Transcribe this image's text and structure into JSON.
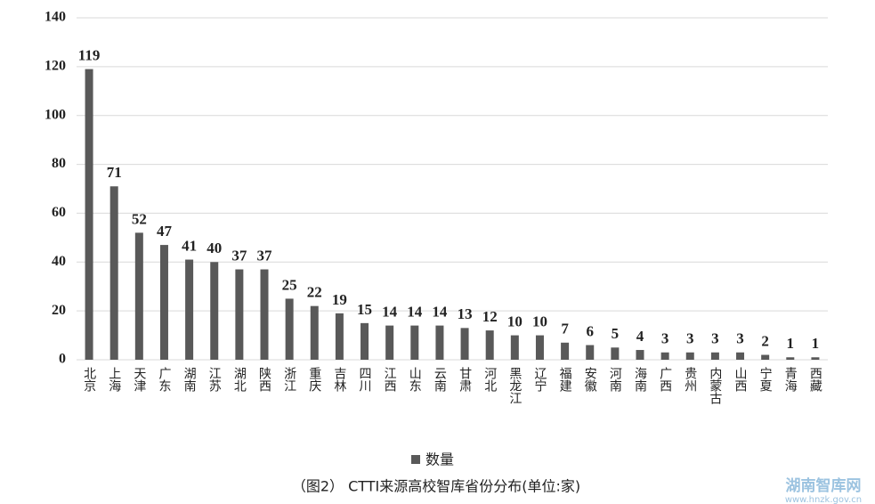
{
  "chart_data": {
    "type": "bar",
    "categories": [
      "北京",
      "上海",
      "天津",
      "广东",
      "湖南",
      "江苏",
      "湖北",
      "陕西",
      "浙江",
      "重庆",
      "吉林",
      "四川",
      "江西",
      "山东",
      "云南",
      "甘肃",
      "河北",
      "黑龙江",
      "辽宁",
      "福建",
      "安徽",
      "河南",
      "海南",
      "广西",
      "贵州",
      "内蒙古",
      "山西",
      "宁夏",
      "青海",
      "西藏"
    ],
    "series": [
      {
        "name": "数量",
        "color": "#595959",
        "values": [
          119,
          71,
          52,
          47,
          41,
          40,
          37,
          37,
          25,
          22,
          19,
          15,
          14,
          14,
          14,
          13,
          12,
          10,
          10,
          7,
          6,
          5,
          4,
          3,
          3,
          3,
          3,
          2,
          1,
          1
        ]
      }
    ],
    "ylim": [
      0,
      140
    ],
    "yticks": [
      0,
      20,
      40,
      60,
      80,
      100,
      120,
      140
    ],
    "grid": true,
    "legend": "bottom",
    "caption": "（图2） CTTI来源高校智库省份分布(单位:家)"
  },
  "watermark": {
    "title": "湖南智库网",
    "url": "www.hnzk.gov.cn"
  }
}
